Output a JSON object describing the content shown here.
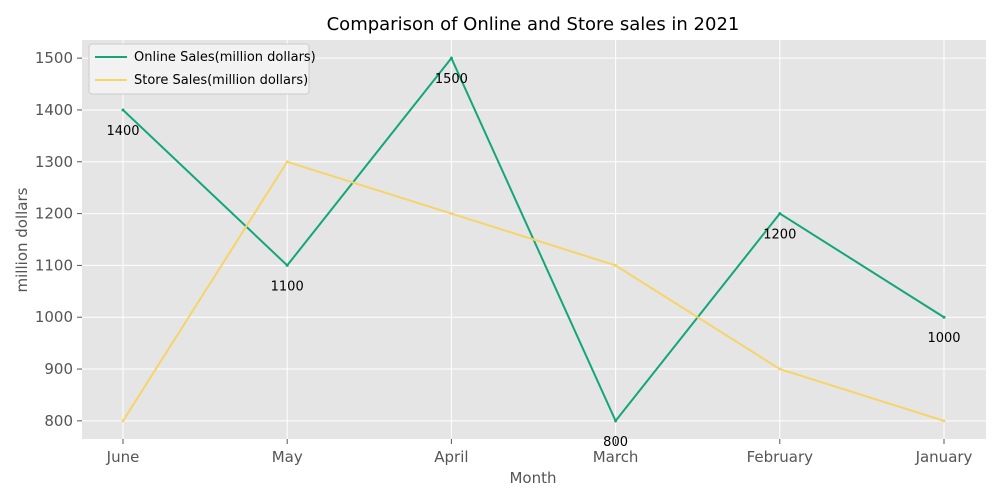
{
  "chart_data": {
    "type": "line",
    "title": "Comparison of Online and Store sales in 2021",
    "xlabel": "Month",
    "ylabel": "million dollars",
    "categories": [
      "June",
      "May",
      "April",
      "March",
      "February",
      "January"
    ],
    "ylim": [
      765,
      1535
    ],
    "yticks": [
      800,
      900,
      1000,
      1100,
      1200,
      1300,
      1400,
      1500
    ],
    "grid": true,
    "legend_position": "top-left",
    "series": [
      {
        "name": "Online Sales(million dollars)",
        "color": "#12a67a",
        "values": [
          1400,
          1100,
          1500,
          800,
          1200,
          1000
        ],
        "data_labels": [
          "1400",
          "1100",
          "1500",
          "800",
          "1200",
          "1000"
        ]
      },
      {
        "name": "Store Sales(million dollars)",
        "color": "#f5d46a",
        "values": [
          800,
          1300,
          1200,
          1100,
          900,
          800
        ]
      }
    ],
    "colors": {
      "background": "#e5e5e5",
      "grid": "#ffffff"
    }
  }
}
